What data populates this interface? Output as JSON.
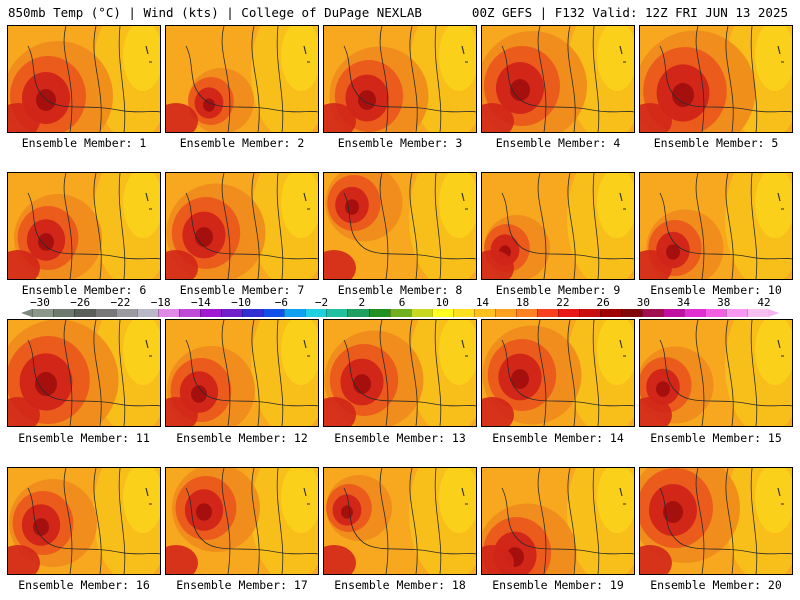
{
  "header": {
    "left": "850mb Temp (°C) | Wind (kts) | College of DuPage NEXLAB",
    "right": "00Z GEFS | F132 Valid: 12Z FRI JUN 13 2025"
  },
  "members": [
    "Ensemble Member: 1",
    "Ensemble Member: 2",
    "Ensemble Member: 3",
    "Ensemble Member: 4",
    "Ensemble Member: 5",
    "Ensemble Member: 6",
    "Ensemble Member: 7",
    "Ensemble Member: 8",
    "Ensemble Member: 9",
    "Ensemble Member: 10",
    "Ensemble Member: 11",
    "Ensemble Member: 12",
    "Ensemble Member: 13",
    "Ensemble Member: 14",
    "Ensemble Member: 15",
    "Ensemble Member: 16",
    "Ensemble Member: 17",
    "Ensemble Member: 18",
    "Ensemble Member: 19",
    "Ensemble Member: 20"
  ],
  "colorbar": {
    "tick_labels": [
      "−30",
      "−26",
      "−22",
      "−18",
      "−14",
      "−10",
      "−6",
      "−2",
      "2",
      "6",
      "10",
      "14",
      "18",
      "22",
      "26",
      "30",
      "34",
      "38",
      "42"
    ],
    "colors": [
      "#8a978a",
      "#6f7a6f",
      "#5a5f5a",
      "#787878",
      "#9a9aa0",
      "#b8b8c8",
      "#e08ae8",
      "#c04ad8",
      "#a01ad0",
      "#7020c8",
      "#3030d0",
      "#1050e8",
      "#10a0f0",
      "#20d0e0",
      "#20c0a0",
      "#20a060",
      "#209020",
      "#70b020",
      "#c8d820",
      "#ffff20",
      "#ffe020",
      "#ffc020",
      "#ffa020",
      "#ff8020",
      "#f84020",
      "#e81818",
      "#c81010",
      "#a00000",
      "#800808",
      "#a01050",
      "#c010a0",
      "#e030d0",
      "#f060e0",
      "#f898f0",
      "#f8c0f0"
    ],
    "tip_left_color": "#7d8a7d",
    "tip_right_color": "#f6b3ef"
  },
  "palette": {
    "background": "#f7a81e",
    "warm": "#f08a1c",
    "hot": "#ea5a1c",
    "hotter": "#d22619",
    "hottest": "#9e0d0d",
    "cool": "#f8c21a",
    "coolest": "#fbd51c",
    "contour": "#2b2b2b"
  }
}
